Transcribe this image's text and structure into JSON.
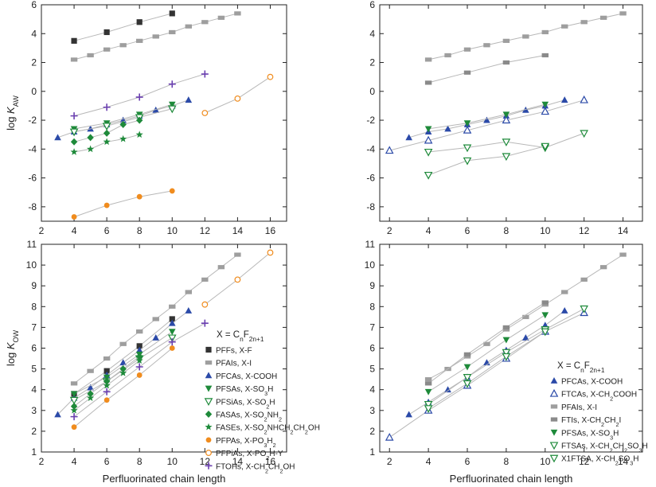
{
  "chart_data": [
    {
      "id": "tl",
      "type": "scatter",
      "ylabel_main": "log K",
      "ylabel_sub": "AW",
      "xlabel": "",
      "xlim": [
        2,
        17
      ],
      "ylim": [
        -9,
        6
      ],
      "xticks": [
        2,
        4,
        6,
        8,
        10,
        12,
        14,
        16
      ],
      "yticks": [
        -8,
        -6,
        -4,
        -2,
        0,
        2,
        4,
        6
      ],
      "series": [
        {
          "color": "#333333",
          "marker": "square",
          "x": [
            4,
            6,
            8,
            10
          ],
          "y": [
            3.5,
            4.1,
            4.8,
            5.4
          ]
        },
        {
          "color": "#9e9e9e",
          "marker": "hrect",
          "x": [
            4,
            5,
            6,
            7,
            8,
            9,
            10,
            11,
            12,
            13,
            14
          ],
          "y": [
            2.2,
            2.5,
            2.9,
            3.2,
            3.5,
            3.8,
            4.1,
            4.5,
            4.8,
            5.1,
            5.4
          ]
        },
        {
          "color": "#2b4aa8",
          "marker": "triangle",
          "x": [
            3,
            4,
            5,
            6,
            7,
            8,
            9,
            10,
            11
          ],
          "y": [
            -3.2,
            -2.8,
            -2.6,
            -2.3,
            -2.0,
            -1.7,
            -1.3,
            -1.0,
            -0.6
          ]
        },
        {
          "color": "#1e8a3a",
          "marker": "triangle-down",
          "x": [
            4,
            6,
            8,
            10
          ],
          "y": [
            -2.6,
            -2.2,
            -1.6,
            -0.9
          ]
        },
        {
          "color": "#1e8a3a",
          "marker": "triangle-down-open",
          "x": [
            4,
            6,
            8,
            10
          ],
          "y": [
            -2.8,
            -2.4,
            -1.8,
            -1.2
          ]
        },
        {
          "color": "#1e8a3a",
          "marker": "diamond",
          "x": [
            4,
            5,
            6,
            7,
            8
          ],
          "y": [
            -3.5,
            -3.2,
            -2.9,
            -2.3,
            -2.0
          ]
        },
        {
          "color": "#1e8a3a",
          "marker": "star",
          "x": [
            4,
            5,
            6,
            7,
            8
          ],
          "y": [
            -4.2,
            -4.0,
            -3.5,
            -3.3,
            -3.0
          ]
        },
        {
          "color": "#f08c1e",
          "marker": "circle",
          "x": [
            4,
            6,
            8,
            10
          ],
          "y": [
            -8.7,
            -7.9,
            -7.3,
            -6.9
          ]
        },
        {
          "color": "#f08c1e",
          "marker": "circle-open",
          "x": [
            12,
            14,
            16
          ],
          "y": [
            -1.5,
            -0.5,
            1.0
          ]
        },
        {
          "color": "#6a3fb0",
          "marker": "plus",
          "x": [
            4,
            6,
            8,
            10,
            12
          ],
          "y": [
            -1.7,
            -1.1,
            -0.4,
            0.5,
            1.2
          ]
        }
      ]
    },
    {
      "id": "tr",
      "type": "scatter",
      "ylabel_main": "",
      "ylabel_sub": "",
      "xlabel": "",
      "xlim": [
        1.5,
        15
      ],
      "ylim": [
        -9,
        6
      ],
      "xticks": [
        2,
        4,
        6,
        8,
        10,
        12,
        14
      ],
      "yticks": [
        -8,
        -6,
        -4,
        -2,
        0,
        2,
        4,
        6
      ],
      "series": [
        {
          "color": "#9e9e9e",
          "marker": "hrect",
          "x": [
            4,
            5,
            6,
            7,
            8,
            9,
            10,
            11,
            12,
            13,
            14
          ],
          "y": [
            2.2,
            2.5,
            2.9,
            3.2,
            3.5,
            3.8,
            4.1,
            4.5,
            4.8,
            5.1,
            5.4
          ]
        },
        {
          "color": "#8a8a8a",
          "marker": "hrect",
          "x": [
            4,
            6,
            8,
            10
          ],
          "y": [
            0.6,
            1.3,
            2.0,
            2.5
          ]
        },
        {
          "color": "#2b4aa8",
          "marker": "triangle",
          "x": [
            3,
            4,
            5,
            6,
            7,
            8,
            9,
            10,
            11
          ],
          "y": [
            -3.2,
            -2.8,
            -2.6,
            -2.3,
            -2.0,
            -1.7,
            -1.3,
            -1.0,
            -0.6
          ]
        },
        {
          "color": "#2b4aa8",
          "marker": "triangle-open",
          "x": [
            2,
            4,
            6,
            8,
            10,
            12
          ],
          "y": [
            -4.1,
            -3.4,
            -2.7,
            -2.0,
            -1.4,
            -0.6
          ]
        },
        {
          "color": "#1e8a3a",
          "marker": "triangle-down",
          "x": [
            4,
            6,
            8,
            10
          ],
          "y": [
            -2.6,
            -2.2,
            -1.6,
            -0.9
          ]
        },
        {
          "color": "#1e8a3a",
          "marker": "triangle-down-open",
          "x": [
            4,
            6,
            8,
            10,
            12
          ],
          "y": [
            -4.2,
            -3.9,
            -3.5,
            -3.9,
            -2.9
          ]
        },
        {
          "color": "#1e8a3a",
          "marker": "triangle-down-open",
          "x": [
            4,
            6,
            8,
            10
          ],
          "y": [
            -5.8,
            -4.8,
            -4.5,
            -3.8
          ]
        }
      ]
    },
    {
      "id": "bl",
      "type": "scatter",
      "ylabel_main": "log K",
      "ylabel_sub": "OW",
      "xlabel": "Perfluorinated chain length",
      "xlim": [
        2,
        17
      ],
      "ylim": [
        1,
        11
      ],
      "xticks": [
        2,
        4,
        6,
        8,
        10,
        12,
        14,
        16
      ],
      "yticks": [
        1,
        2,
        3,
        4,
        5,
        6,
        7,
        8,
        9,
        10,
        11
      ],
      "series": [
        {
          "color": "#333333",
          "marker": "square",
          "x": [
            4,
            6,
            8,
            10
          ],
          "y": [
            3.8,
            4.9,
            6.1,
            7.4
          ]
        },
        {
          "color": "#9e9e9e",
          "marker": "hrect",
          "x": [
            4,
            5,
            6,
            7,
            8,
            9,
            10,
            11,
            12,
            13,
            14
          ],
          "y": [
            4.3,
            4.9,
            5.5,
            6.2,
            6.8,
            7.4,
            8.0,
            8.7,
            9.3,
            9.9,
            10.5
          ]
        },
        {
          "color": "#2b4aa8",
          "marker": "triangle",
          "x": [
            3,
            4,
            5,
            6,
            7,
            8,
            9,
            10,
            11
          ],
          "y": [
            2.8,
            3.6,
            4.1,
            4.7,
            5.3,
            5.9,
            6.5,
            7.2,
            7.8
          ]
        },
        {
          "color": "#1e8a3a",
          "marker": "triangle-down",
          "x": [
            4,
            6,
            8,
            10
          ],
          "y": [
            3.8,
            4.6,
            5.7,
            6.8
          ]
        },
        {
          "color": "#1e8a3a",
          "marker": "triangle-down-open",
          "x": [
            4,
            6,
            8,
            10
          ],
          "y": [
            3.5,
            4.4,
            5.5,
            6.5
          ]
        },
        {
          "color": "#1e8a3a",
          "marker": "diamond",
          "x": [
            4,
            5,
            6,
            7,
            8
          ],
          "y": [
            3.2,
            3.8,
            4.4,
            5.0,
            5.6
          ]
        },
        {
          "color": "#1e8a3a",
          "marker": "star",
          "x": [
            4,
            5,
            6,
            7,
            8
          ],
          "y": [
            3.0,
            3.6,
            4.2,
            4.8,
            5.4
          ]
        },
        {
          "color": "#f08c1e",
          "marker": "circle",
          "x": [
            4,
            6,
            8,
            10
          ],
          "y": [
            2.2,
            3.5,
            4.7,
            6.0
          ]
        },
        {
          "color": "#f08c1e",
          "marker": "circle-open",
          "x": [
            12,
            14,
            16
          ],
          "y": [
            8.1,
            9.3,
            10.6
          ]
        },
        {
          "color": "#6a3fb0",
          "marker": "plus",
          "x": [
            4,
            6,
            8,
            10,
            12
          ],
          "y": [
            2.7,
            3.9,
            5.1,
            6.3,
            7.2
          ]
        }
      ],
      "legend": {
        "title_main": "X = C",
        "title_tail": "F",
        "title_sub1": "n",
        "title_sub2": "2n+1",
        "entries": [
          {
            "label": "PFFs, X-F"
          },
          {
            "label": "PFAIs, X-I"
          },
          {
            "label": "PFCAs, X-COOH"
          },
          {
            "label": "PFSAs, X-SO",
            "sub": "3",
            "tail": "H"
          },
          {
            "label": "PFSiAs, X-SO",
            "sub": "2",
            "tail": "H"
          },
          {
            "label": "FASAs, X-SO",
            "sub": "2",
            "tail": "NH",
            "sub2": "2"
          },
          {
            "label": "FASEs, X-SO",
            "sub": "2",
            "tail": "NHCH",
            "sub2": "2",
            "tail2": "CH",
            "sub3": "2",
            "tail3": "OH"
          },
          {
            "label": "PFPAs, X-PO",
            "sub": "3",
            "tail": "H",
            "sub2": "2"
          },
          {
            "label": "PFPiAs, X-PO",
            "sub": "2",
            "tail": "H-Y"
          },
          {
            "label": "FTOHs, X-CH",
            "sub": "2",
            "tail": "CH",
            "sub2": "2",
            "tail2": "OH"
          }
        ]
      }
    },
    {
      "id": "br",
      "type": "scatter",
      "ylabel_main": "",
      "ylabel_sub": "",
      "xlabel": "Perfluorinated chain length",
      "xlim": [
        1.5,
        15
      ],
      "ylim": [
        1,
        11
      ],
      "xticks": [
        2,
        4,
        6,
        8,
        10,
        12,
        14
      ],
      "yticks": [
        1,
        2,
        3,
        4,
        5,
        6,
        7,
        8,
        9,
        10,
        11
      ],
      "series": [
        {
          "color": "#2b4aa8",
          "marker": "triangle",
          "x": [
            3,
            4,
            5,
            6,
            7,
            8,
            9,
            10,
            11
          ],
          "y": [
            2.8,
            3.4,
            4.0,
            4.6,
            5.3,
            5.9,
            6.5,
            7.1,
            7.8
          ]
        },
        {
          "color": "#2b4aa8",
          "marker": "triangle-open",
          "x": [
            2,
            4,
            6,
            8,
            10,
            12
          ],
          "y": [
            1.7,
            3.0,
            4.2,
            5.5,
            6.8,
            7.7
          ]
        },
        {
          "color": "#9e9e9e",
          "marker": "hrect",
          "x": [
            4,
            5,
            6,
            7,
            8,
            9,
            10,
            11,
            12,
            13,
            14
          ],
          "y": [
            4.5,
            5.0,
            5.6,
            6.2,
            6.9,
            7.5,
            8.1,
            8.7,
            9.3,
            9.9,
            10.5
          ]
        },
        {
          "color": "#8a8a8a",
          "marker": "hrect",
          "x": [
            4,
            6,
            8,
            10
          ],
          "y": [
            4.3,
            5.7,
            7.0,
            8.2
          ]
        },
        {
          "color": "#1e8a3a",
          "marker": "triangle-down",
          "x": [
            4,
            6,
            8,
            10
          ],
          "y": [
            3.9,
            5.1,
            6.4,
            7.6
          ]
        },
        {
          "color": "#1e8a3a",
          "marker": "triangle-down-open",
          "x": [
            4,
            6,
            8,
            10,
            12
          ],
          "y": [
            3.3,
            4.6,
            5.8,
            6.9,
            7.9
          ]
        },
        {
          "color": "#1e8a3a",
          "marker": "triangle-down-open",
          "x": [
            4,
            6,
            8,
            10
          ],
          "y": [
            3.1,
            4.3,
            5.6,
            6.8
          ]
        }
      ],
      "legend": {
        "title_main": "X = C",
        "title_tail": "F",
        "title_sub1": "n",
        "title_sub2": "2n+1",
        "entries": [
          {
            "label": "PFCAs, X-COOH"
          },
          {
            "label": "FTCAs, X-CH",
            "sub": "2",
            "tail": "COOH"
          },
          {
            "label": "PFAIs, X-I"
          },
          {
            "label": "FTIs, X-CH",
            "sub": "2",
            "tail": "CH",
            "sub2": "2",
            "tail2": "I"
          },
          {
            "label": "PFSAs, X-SO",
            "sub": "3",
            "tail": "H"
          },
          {
            "label": "FTSAs, X-CH",
            "sub": "2",
            "tail": "CH",
            "sub2": "2",
            "tail2": "SO",
            "sub3": "3",
            "tail3": "H"
          },
          {
            "label": "X1FTSA, X-CH",
            "sub": "2",
            "tail": "SO",
            "sub2": "3",
            "tail2": "H"
          }
        ]
      }
    }
  ]
}
